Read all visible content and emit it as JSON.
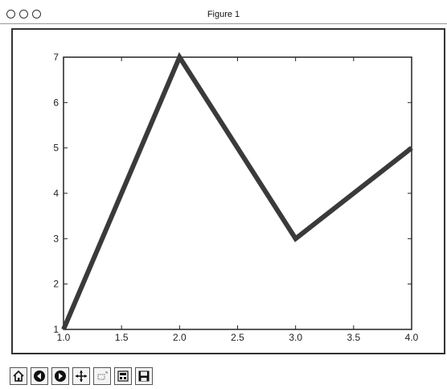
{
  "window": {
    "title": "Figure 1"
  },
  "toolbar": {
    "buttons": [
      {
        "name": "home-button",
        "icon": "home-icon"
      },
      {
        "name": "back-button",
        "icon": "back-arrow-icon"
      },
      {
        "name": "forward-button",
        "icon": "forward-arrow-icon"
      },
      {
        "name": "pan-button",
        "icon": "move-arrows-icon"
      },
      {
        "name": "zoom-button",
        "icon": "zoom-rect-icon"
      },
      {
        "name": "configure-subplots-button",
        "icon": "subplots-icon"
      },
      {
        "name": "save-button",
        "icon": "floppy-disk-icon"
      }
    ]
  },
  "chart_data": {
    "type": "line",
    "x": [
      1.0,
      2.0,
      3.0,
      4.0
    ],
    "series": [
      {
        "values": [
          1,
          7,
          3,
          5
        ],
        "color": "#3a3a3a"
      }
    ],
    "xlim": [
      1.0,
      4.0
    ],
    "ylim": [
      1,
      7
    ],
    "xticks": [
      "1.0",
      "1.5",
      "2.0",
      "2.5",
      "3.0",
      "3.5",
      "4.0"
    ],
    "yticks": [
      "1",
      "2",
      "3",
      "4",
      "5",
      "6",
      "7"
    ],
    "grid": false,
    "title": "",
    "xlabel": "",
    "ylabel": ""
  }
}
